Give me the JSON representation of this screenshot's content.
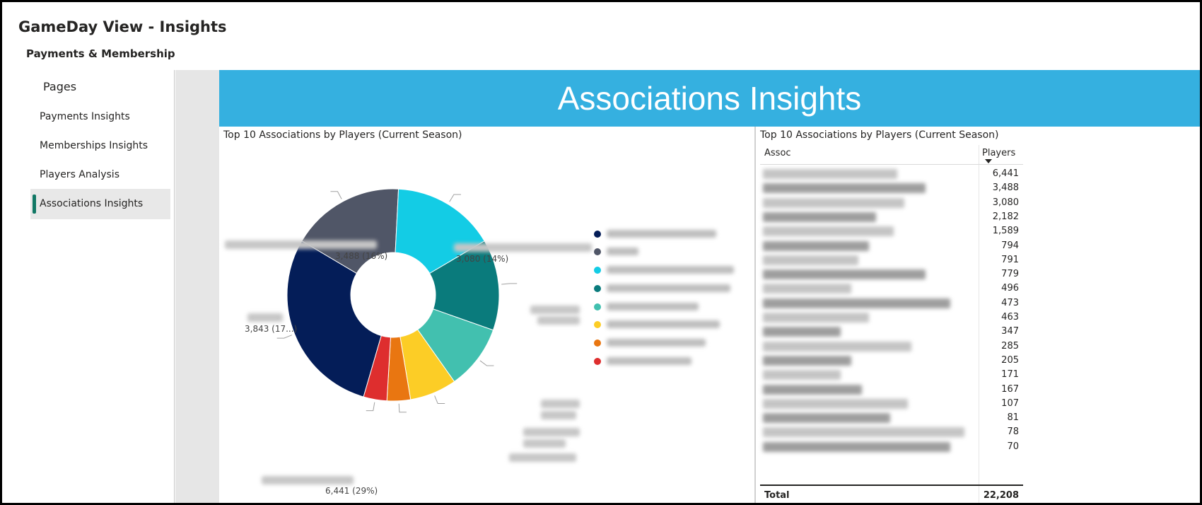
{
  "app": {
    "title": "GameDay View - Insights",
    "subtitle": "Payments & Membership"
  },
  "sidebar": {
    "pages_title": "Pages",
    "items": [
      {
        "label": "Payments Insights",
        "active": false
      },
      {
        "label": "Memberships Insights",
        "active": false
      },
      {
        "label": "Players Analysis",
        "active": false
      },
      {
        "label": "Associations Insights",
        "active": true
      }
    ]
  },
  "banner": {
    "title": "Associations Insights"
  },
  "donut": {
    "title": "Top 10 Associations by Players (Current Season)",
    "chart_data": {
      "type": "pie",
      "values": [
        6441,
        3843,
        3488,
        3080,
        2182,
        1589,
        794,
        791
      ],
      "colors": [
        "#041d58",
        "#505667",
        "#13cce5",
        "#0a7b7c",
        "#42c0af",
        "#fccd26",
        "#e97611",
        "#de2e2e"
      ],
      "data_labels": [
        "6,441 (29%)",
        "3,843 (17...)",
        "3,488 (16%)",
        "3,080 (14%)",
        "",
        "",
        "",
        ""
      ]
    }
  },
  "table": {
    "title": "Top 10 Associations by Players (Current Season)",
    "col_assoc": "Assoc",
    "col_players": "Players",
    "values": [
      "6,441",
      "3,488",
      "3,080",
      "2,182",
      "1,589",
      "794",
      "791",
      "779",
      "496",
      "473",
      "463",
      "347",
      "285",
      "205",
      "171",
      "167",
      "107",
      "81",
      "78",
      "70"
    ],
    "total_label": "Total",
    "total_value": "22,208"
  }
}
